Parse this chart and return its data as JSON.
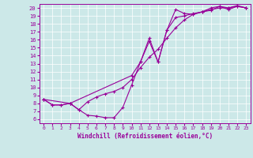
{
  "xlabel": "Windchill (Refroidissement éolien,°C)",
  "bg_color": "#cce8e8",
  "line_color": "#990099",
  "xlim": [
    -0.5,
    23.5
  ],
  "ylim": [
    5.5,
    20.5
  ],
  "xticks": [
    0,
    1,
    2,
    3,
    4,
    5,
    6,
    7,
    8,
    9,
    10,
    11,
    12,
    13,
    14,
    15,
    16,
    17,
    18,
    19,
    20,
    21,
    22,
    23
  ],
  "yticks": [
    6,
    7,
    8,
    9,
    10,
    11,
    12,
    13,
    14,
    15,
    16,
    17,
    18,
    19,
    20
  ],
  "line1_x": [
    0,
    1,
    2,
    3,
    4,
    5,
    6,
    7,
    8,
    9,
    10,
    11,
    12,
    13,
    14,
    15,
    16,
    17,
    18,
    19,
    20,
    21,
    22,
    23
  ],
  "line1_y": [
    8.5,
    7.8,
    7.8,
    8.0,
    7.2,
    6.5,
    6.4,
    6.2,
    6.2,
    7.5,
    10.3,
    13.2,
    15.8,
    13.2,
    17.2,
    19.8,
    19.3,
    19.2,
    19.5,
    19.7,
    20.2,
    19.8,
    20.2,
    20.0
  ],
  "line2_x": [
    0,
    1,
    2,
    3,
    4,
    5,
    6,
    7,
    8,
    9,
    10,
    11,
    12,
    13,
    14,
    15,
    16,
    17,
    18,
    19,
    20,
    21,
    22,
    23
  ],
  "line2_y": [
    8.5,
    7.8,
    7.8,
    8.0,
    7.2,
    8.2,
    8.8,
    9.2,
    9.5,
    10.0,
    11.0,
    12.5,
    13.8,
    14.8,
    16.2,
    17.5,
    18.5,
    19.2,
    19.5,
    19.8,
    20.0,
    20.0,
    20.2,
    20.0
  ],
  "line3_x": [
    0,
    3,
    10,
    11,
    12,
    13,
    14,
    15,
    16,
    17,
    18,
    19,
    20,
    21,
    22,
    23
  ],
  "line3_y": [
    8.5,
    8.0,
    11.5,
    13.2,
    16.2,
    13.2,
    17.2,
    18.8,
    19.0,
    19.3,
    19.5,
    20.0,
    20.2,
    20.0,
    20.3,
    20.0
  ]
}
